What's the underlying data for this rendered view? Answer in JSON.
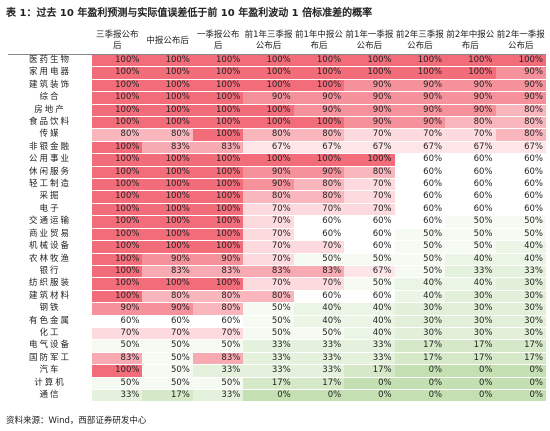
{
  "title": "表 1：过去 10 年盈利预测与实际值误差低于前 10 年盈利波动 1 倍标准差的概率",
  "table": {
    "columns": [
      "三季报公布后",
      "中报公布后",
      "一季报公布后",
      "前1年三季报公布后",
      "前1年中报公布后",
      "前1年一季报公布后",
      "前2年三季报公布后",
      "前2年中报公布后",
      "前2年一季报公布后"
    ],
    "rows": [
      {
        "name": "医药生物",
        "cells": [
          "100%",
          "100%",
          "100%",
          "100%",
          "100%",
          "100%",
          "100%",
          "100%",
          "100%"
        ]
      },
      {
        "name": "家用电器",
        "cells": [
          "100%",
          "100%",
          "100%",
          "100%",
          "100%",
          "100%",
          "100%",
          "100%",
          "90%"
        ]
      },
      {
        "name": "建筑装饰",
        "cells": [
          "100%",
          "100%",
          "100%",
          "100%",
          "100%",
          "90%",
          "90%",
          "90%",
          "90%"
        ]
      },
      {
        "name": "综合",
        "cells": [
          "100%",
          "100%",
          "100%",
          "90%",
          "90%",
          "90%",
          "90%",
          "90%",
          "90%"
        ]
      },
      {
        "name": "房地产",
        "cells": [
          "100%",
          "100%",
          "100%",
          "100%",
          "90%",
          "90%",
          "90%",
          "90%",
          "80%"
        ]
      },
      {
        "name": "食品饮料",
        "cells": [
          "100%",
          "100%",
          "100%",
          "100%",
          "100%",
          "90%",
          "90%",
          "80%",
          "80%"
        ]
      },
      {
        "name": "传媒",
        "cells": [
          "80%",
          "80%",
          "100%",
          "80%",
          "80%",
          "70%",
          "70%",
          "70%",
          "80%"
        ]
      },
      {
        "name": "非银金融",
        "cells": [
          "100%",
          "83%",
          "83%",
          "67%",
          "67%",
          "67%",
          "67%",
          "67%",
          "67%"
        ]
      },
      {
        "name": "公用事业",
        "cells": [
          "100%",
          "100%",
          "100%",
          "100%",
          "100%",
          "100%",
          "60%",
          "60%",
          "60%"
        ]
      },
      {
        "name": "休闲服务",
        "cells": [
          "100%",
          "100%",
          "100%",
          "90%",
          "90%",
          "80%",
          "60%",
          "60%",
          "60%"
        ]
      },
      {
        "name": "轻工制造",
        "cells": [
          "100%",
          "100%",
          "100%",
          "90%",
          "80%",
          "70%",
          "60%",
          "60%",
          "60%"
        ]
      },
      {
        "name": "采掘",
        "cells": [
          "100%",
          "100%",
          "100%",
          "80%",
          "80%",
          "70%",
          "60%",
          "60%",
          "60%"
        ]
      },
      {
        "name": "电子",
        "cells": [
          "100%",
          "100%",
          "100%",
          "70%",
          "70%",
          "70%",
          "60%",
          "60%",
          "60%"
        ]
      },
      {
        "name": "交通运输",
        "cells": [
          "100%",
          "100%",
          "100%",
          "70%",
          "60%",
          "60%",
          "60%",
          "50%",
          "50%"
        ]
      },
      {
        "name": "商业贸易",
        "cells": [
          "100%",
          "100%",
          "100%",
          "70%",
          "60%",
          "60%",
          "50%",
          "50%",
          "50%"
        ]
      },
      {
        "name": "机械设备",
        "cells": [
          "100%",
          "100%",
          "100%",
          "70%",
          "70%",
          "60%",
          "50%",
          "50%",
          "40%"
        ]
      },
      {
        "name": "农林牧渔",
        "cells": [
          "100%",
          "90%",
          "90%",
          "70%",
          "50%",
          "50%",
          "50%",
          "40%",
          "40%"
        ]
      },
      {
        "name": "银行",
        "cells": [
          "100%",
          "83%",
          "83%",
          "83%",
          "83%",
          "67%",
          "50%",
          "33%",
          "33%"
        ]
      },
      {
        "name": "纺织服装",
        "cells": [
          "100%",
          "100%",
          "100%",
          "70%",
          "70%",
          "50%",
          "40%",
          "40%",
          "30%"
        ]
      },
      {
        "name": "建筑材料",
        "cells": [
          "100%",
          "80%",
          "80%",
          "80%",
          "60%",
          "60%",
          "40%",
          "30%",
          "30%"
        ]
      },
      {
        "name": "钢铁",
        "cells": [
          "90%",
          "90%",
          "80%",
          "50%",
          "40%",
          "40%",
          "30%",
          "30%",
          "30%"
        ]
      },
      {
        "name": "有色金属",
        "cells": [
          "60%",
          "60%",
          "60%",
          "50%",
          "40%",
          "40%",
          "30%",
          "30%",
          "30%"
        ]
      },
      {
        "name": "化工",
        "cells": [
          "70%",
          "70%",
          "70%",
          "50%",
          "50%",
          "40%",
          "30%",
          "30%",
          "30%"
        ]
      },
      {
        "name": "电气设备",
        "cells": [
          "50%",
          "50%",
          "50%",
          "33%",
          "33%",
          "33%",
          "17%",
          "17%",
          "17%"
        ]
      },
      {
        "name": "国防军工",
        "cells": [
          "83%",
          "50%",
          "83%",
          "33%",
          "33%",
          "33%",
          "17%",
          "17%",
          "17%"
        ]
      },
      {
        "name": "汽车",
        "cells": [
          "100%",
          "50%",
          "33%",
          "33%",
          "33%",
          "17%",
          "0%",
          "0%",
          "0%"
        ]
      },
      {
        "name": "计算机",
        "cells": [
          "50%",
          "50%",
          "50%",
          "17%",
          "17%",
          "0%",
          "0%",
          "0%",
          "0%"
        ]
      },
      {
        "name": "通信",
        "cells": [
          "33%",
          "17%",
          "33%",
          "0%",
          "0%",
          "0%",
          "0%",
          "0%",
          "0%"
        ]
      }
    ]
  },
  "source": "资料来源：Wind，西部证券研发中心"
}
